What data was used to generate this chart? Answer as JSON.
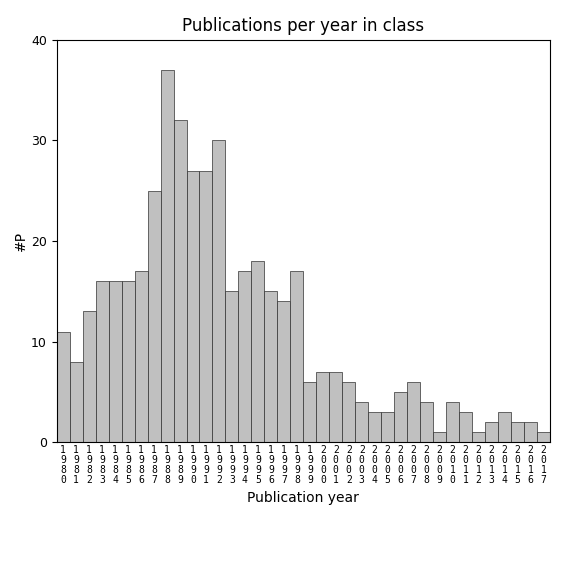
{
  "title": "Publications per year in class",
  "xlabel": "Publication year",
  "ylabel": "#P",
  "years": [
    "1980",
    "1981",
    "1982",
    "1983",
    "1984",
    "1985",
    "1986",
    "1987",
    "1988",
    "1989",
    "1990",
    "1991",
    "1992",
    "1993",
    "1994",
    "1995",
    "1996",
    "1997",
    "1998",
    "1999",
    "2000",
    "2001",
    "2002",
    "2003",
    "2004",
    "2005",
    "2006",
    "2007",
    "2008",
    "2009",
    "2010",
    "2011",
    "2012",
    "2013",
    "2014",
    "2015",
    "2016",
    "2017"
  ],
  "values": [
    11,
    8,
    13,
    16,
    16,
    16,
    17,
    25,
    37,
    32,
    27,
    27,
    30,
    15,
    17,
    18,
    15,
    14,
    17,
    6,
    7,
    7,
    6,
    4,
    3,
    3,
    5,
    6,
    4,
    1,
    4,
    3,
    1,
    2,
    3,
    2,
    2,
    1
  ],
  "bar_color": "#c0c0c0",
  "bar_edgecolor": "#303030",
  "ylim": [
    0,
    40
  ],
  "yticks": [
    0,
    10,
    20,
    30,
    40
  ],
  "background_color": "#ffffff",
  "title_fontsize": 12,
  "axis_label_fontsize": 10,
  "tick_fontsize": 9,
  "xtick_fontsize": 7
}
